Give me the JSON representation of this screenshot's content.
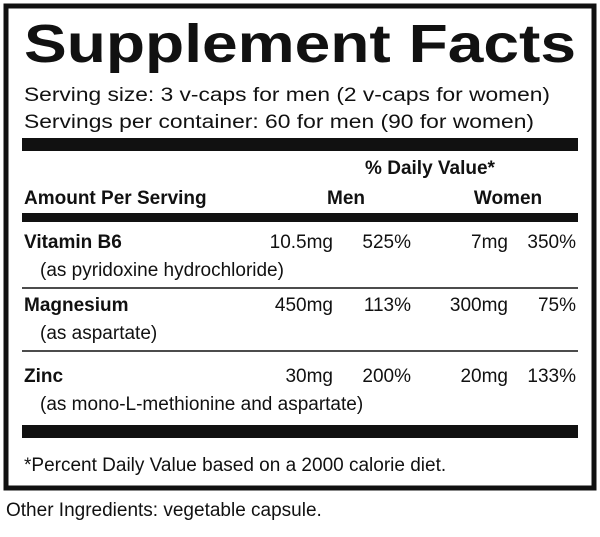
{
  "title": "Supplement Facts",
  "serving_size": "Serving size: 3 v-caps for men (2 v-caps for women)",
  "servings_per_container": "Servings per container: 60 for men (90 for women)",
  "daily_value_heading": "% Daily Value*",
  "headers": {
    "amount": "Amount Per Serving",
    "men": "Men",
    "women": "Women"
  },
  "rows": [
    {
      "name": "Vitamin B6",
      "note": "(as pyridoxine hydrochloride)",
      "men_amount": "10.5mg",
      "men_dv": "525%",
      "women_amount": "7mg",
      "women_dv": "350%"
    },
    {
      "name": "Magnesium",
      "note": "(as aspartate)",
      "men_amount": "450mg",
      "men_dv": "113%",
      "women_amount": "300mg",
      "women_dv": "75%"
    },
    {
      "name": "Zinc",
      "note": "(as mono-L-methionine and aspartate)",
      "men_amount": "30mg",
      "men_dv": "200%",
      "women_amount": "20mg",
      "women_dv": "133%"
    }
  ],
  "footnote": "*Percent Daily Value based on a 2000 calorie diet.",
  "other_ingredients": "Other Ingredients: vegetable capsule."
}
